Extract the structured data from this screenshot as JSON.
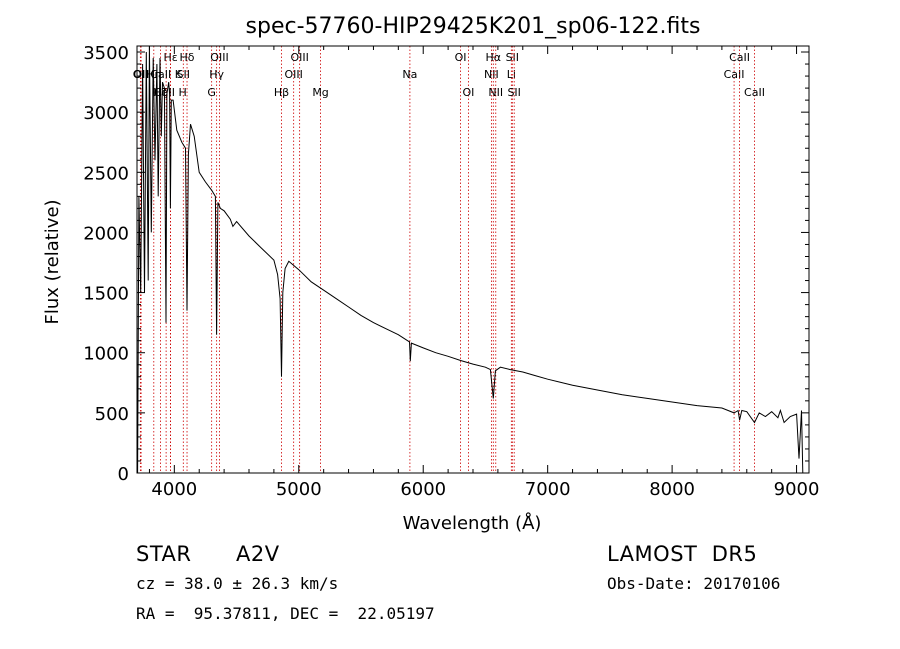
{
  "chart_data": {
    "type": "line",
    "title": "spec-57760-HIP29425K201_sp06-122.fits",
    "xlabel": "Wavelength (Å)",
    "ylabel": "Flux (relative)",
    "xlim": [
      3700,
      9100
    ],
    "ylim": [
      0,
      3550
    ],
    "x_ticks": [
      4000,
      5000,
      6000,
      7000,
      8000,
      9000
    ],
    "x_tick_labels": [
      "4000",
      "5000",
      "6000",
      "7000",
      "8000",
      "9000"
    ],
    "y_ticks": [
      0,
      500,
      1000,
      1500,
      2000,
      2500,
      3000,
      3500
    ],
    "y_tick_labels": [
      "0",
      "500",
      "1000",
      "1500",
      "2000",
      "2500",
      "3000",
      "3500"
    ],
    "grid": false,
    "line_color": "#000000",
    "marker_color": "#cc0000",
    "series": [
      {
        "x": [
          3700,
          3705,
          3715,
          3730,
          3745,
          3760,
          3775,
          3790,
          3800,
          3815,
          3830,
          3845,
          3860,
          3870,
          3885,
          3895,
          3905,
          3920,
          3933,
          3940,
          3955,
          3962,
          3968,
          3976,
          3990,
          4020,
          4060,
          4090,
          4102,
          4113,
          4130,
          4160,
          4200,
          4250,
          4300,
          4330,
          4340,
          4350,
          4370,
          4400,
          4450,
          4471,
          4500,
          4600,
          4700,
          4800,
          4830,
          4850,
          4861,
          4872,
          4890,
          4920,
          5000,
          5100,
          5200,
          5300,
          5400,
          5500,
          5600,
          5700,
          5800,
          5890,
          5896,
          5905,
          6000,
          6100,
          6200,
          6300,
          6400,
          6500,
          6540,
          6563,
          6580,
          6620,
          6700,
          6800,
          6900,
          7000,
          7200,
          7400,
          7600,
          7800,
          8000,
          8200,
          8400,
          8498,
          8530,
          8542,
          8560,
          8600,
          8662,
          8700,
          8750,
          8800,
          8850,
          8870,
          8900,
          8950,
          9000,
          9020,
          9040,
          9050
        ],
        "values": [
          700,
          0,
          2300,
          1500,
          3400,
          1500,
          3500,
          1600,
          3550,
          2000,
          3450,
          2600,
          3400,
          2300,
          3450,
          2800,
          3250,
          3200,
          1250,
          3150,
          3250,
          3150,
          2200,
          3100,
          3100,
          2850,
          2750,
          2700,
          1350,
          2650,
          2900,
          2800,
          2500,
          2420,
          2350,
          2300,
          1150,
          2250,
          2200,
          2180,
          2110,
          2050,
          2090,
          1970,
          1870,
          1770,
          1650,
          1450,
          800,
          1500,
          1700,
          1760,
          1690,
          1590,
          1520,
          1450,
          1380,
          1310,
          1250,
          1200,
          1150,
          1090,
          930,
          1080,
          1040,
          1000,
          970,
          935,
          905,
          880,
          860,
          620,
          850,
          880,
          860,
          840,
          810,
          780,
          730,
          690,
          650,
          620,
          590,
          560,
          540,
          500,
          520,
          440,
          520,
          510,
          420,
          500,
          470,
          510,
          460,
          520,
          420,
          470,
          490,
          120,
          520,
          0
        ]
      }
    ],
    "lines": [
      {
        "name": "OII",
        "x": 3727,
        "row": 2
      },
      {
        "name": "OII",
        "x": 3733,
        "row": 2
      },
      {
        "name": "Hη",
        "x": 3835,
        "row": 2
      },
      {
        "name": "Hζ",
        "x": 3889,
        "row": 3
      },
      {
        "name": "Hε",
        "x": 3970,
        "row": 1
      },
      {
        "name": "CaII K",
        "x": 3934,
        "row": 2
      },
      {
        "name": "CaII H",
        "x": 3969,
        "row": 3
      },
      {
        "name": "SII",
        "x": 4072,
        "row": 2
      },
      {
        "name": "Hδ",
        "x": 4102,
        "row": 1
      },
      {
        "name": "G",
        "x": 4300,
        "row": 3
      },
      {
        "name": "Hγ",
        "x": 4340,
        "row": 2
      },
      {
        "name": "OIII",
        "x": 4363,
        "row": 1
      },
      {
        "name": "Hβ",
        "x": 4861,
        "row": 3
      },
      {
        "name": "OIII",
        "x": 4959,
        "row": 2
      },
      {
        "name": "OIII",
        "x": 5007,
        "row": 1
      },
      {
        "name": "Mg",
        "x": 5175,
        "row": 3
      },
      {
        "name": "Na",
        "x": 5893,
        "row": 2
      },
      {
        "name": "OI",
        "x": 6300,
        "row": 1
      },
      {
        "name": "OI",
        "x": 6363,
        "row": 3
      },
      {
        "name": "NII",
        "x": 6548,
        "row": 2
      },
      {
        "name": "Hα",
        "x": 6563,
        "row": 1
      },
      {
        "name": "NII",
        "x": 6583,
        "row": 3
      },
      {
        "name": "Li",
        "x": 6708,
        "row": 2
      },
      {
        "name": "SII",
        "x": 6716,
        "row": 1
      },
      {
        "name": "SII",
        "x": 6731,
        "row": 3
      },
      {
        "name": "CaII",
        "x": 8498,
        "row": 2
      },
      {
        "name": "CaII",
        "x": 8542,
        "row": 1
      },
      {
        "name": "CaII",
        "x": 8662,
        "row": 3
      }
    ]
  },
  "info": {
    "object_class": "STAR",
    "subclass": "A2V",
    "survey": "LAMOST  DR5",
    "cz": "cz = 38.0 ± 26.3 km/s",
    "obs_date": "Obs-Date: 20170106",
    "coords": "RA =  95.37811, DEC =  22.05197"
  }
}
